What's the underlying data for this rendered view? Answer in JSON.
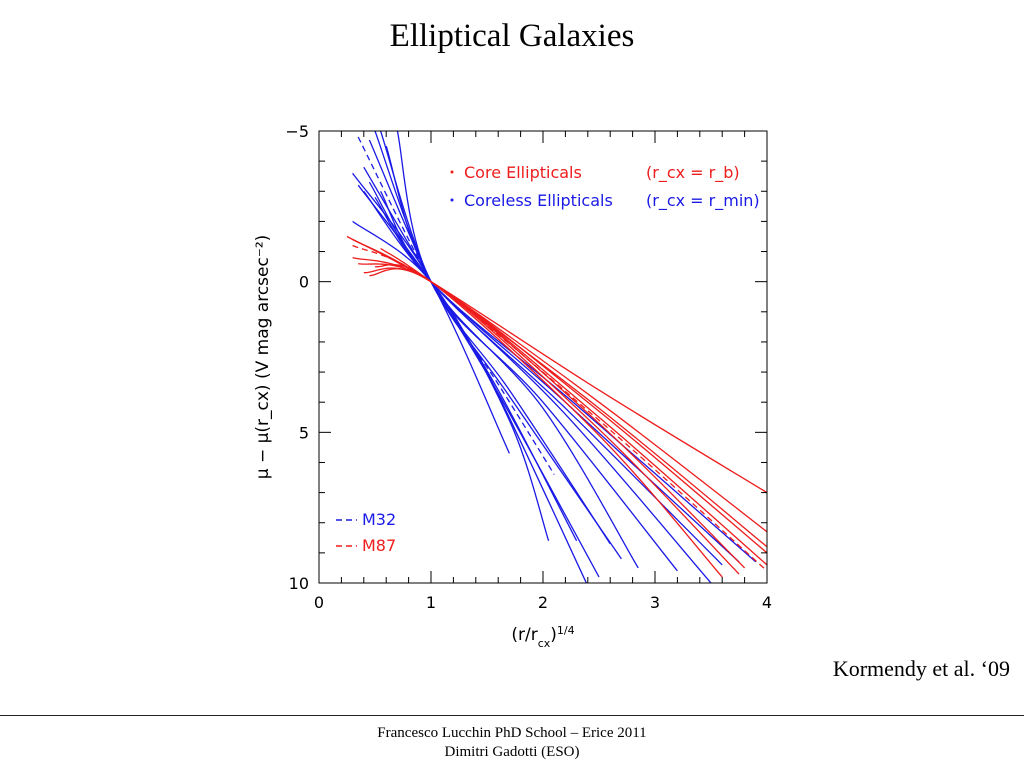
{
  "slide": {
    "title": "Elliptical Galaxies",
    "citation": "Kormendy et al. ‘09",
    "footer_line1": "Francesco Lucchin PhD School – Erice 2011",
    "footer_line2": "Dimitri Gadotti (ESO)"
  },
  "chart_data": {
    "type": "line",
    "title": "",
    "xlabel": "(r/r_cx)^1/4",
    "ylabel": "μ − μ(r_cx)   (V mag arcsec⁻²)",
    "xlim": [
      0,
      4
    ],
    "ylim": [
      10,
      -5
    ],
    "y_inverted": true,
    "x_ticks": [
      0,
      1,
      2,
      3,
      4
    ],
    "y_ticks": [
      -5,
      0,
      5,
      10
    ],
    "colors": {
      "core": "#ee1c1c",
      "coreless": "#1a1ae6"
    },
    "legend": {
      "placement": "top-right",
      "entries": [
        {
          "label": "Core Ellipticals",
          "note": "(r_cx = r_b)",
          "color": "#ee1c1c"
        },
        {
          "label": "Coreless Ellipticals",
          "note": "(r_cx = r_min)",
          "color": "#1a1ae6"
        }
      ]
    },
    "legend_dashed": {
      "placement": "bottom-left",
      "entries": [
        {
          "label": "M32",
          "color": "#1a1ae6"
        },
        {
          "label": "M87",
          "color": "#ee1c1c"
        }
      ]
    },
    "series": [
      {
        "group": "coreless",
        "dashed": false,
        "points": [
          [
            0.3,
            -3.6
          ],
          [
            1,
            0
          ],
          [
            1.7,
            5.7
          ]
        ]
      },
      {
        "group": "coreless",
        "dashed": false,
        "points": [
          [
            0.3,
            -2.0
          ],
          [
            1,
            0
          ],
          [
            1.7,
            4.6
          ],
          [
            2.05,
            8.6
          ]
        ]
      },
      {
        "group": "coreless",
        "dashed": false,
        "points": [
          [
            0.35,
            -3.2
          ],
          [
            1,
            0
          ],
          [
            1.6,
            3.6
          ],
          [
            2.3,
            8.6
          ]
        ]
      },
      {
        "group": "coreless",
        "dashed": false,
        "points": [
          [
            0.4,
            -3.8
          ],
          [
            1,
            0
          ],
          [
            1.6,
            3.7
          ],
          [
            2.5,
            9.8
          ]
        ]
      },
      {
        "group": "coreless",
        "dashed": false,
        "points": [
          [
            0.45,
            -4.7
          ],
          [
            1,
            0
          ],
          [
            1.5,
            3.0
          ],
          [
            2.4,
            10.1
          ]
        ]
      },
      {
        "group": "coreless",
        "dashed": false,
        "points": [
          [
            0.5,
            -5.0
          ],
          [
            1,
            0
          ],
          [
            1.7,
            3.8
          ],
          [
            2.7,
            9.2
          ]
        ]
      },
      {
        "group": "coreless",
        "dashed": false,
        "points": [
          [
            0.55,
            -5.0
          ],
          [
            1,
            0
          ],
          [
            1.7,
            3.6
          ],
          [
            2.6,
            8.7
          ]
        ]
      },
      {
        "group": "coreless",
        "dashed": false,
        "points": [
          [
            0.6,
            -4.5
          ],
          [
            1,
            0
          ],
          [
            2.0,
            4.2
          ],
          [
            2.85,
            9.5
          ]
        ]
      },
      {
        "group": "coreless",
        "dashed": false,
        "points": [
          [
            0.7,
            -5.0
          ],
          [
            1,
            0
          ],
          [
            2.0,
            4.0
          ],
          [
            3.2,
            9.6
          ]
        ]
      },
      {
        "group": "coreless",
        "dashed": false,
        "points": [
          [
            0.4,
            -3.0
          ],
          [
            1,
            0
          ],
          [
            2.2,
            4.4
          ],
          [
            3.5,
            10.0
          ]
        ]
      },
      {
        "group": "coreless",
        "dashed": false,
        "points": [
          [
            0.45,
            -3.3
          ],
          [
            1,
            0
          ],
          [
            2.2,
            4.2
          ],
          [
            3.6,
            9.4
          ]
        ]
      },
      {
        "group": "coreless",
        "dashed": false,
        "points": [
          [
            0.5,
            -2.8
          ],
          [
            1,
            0
          ],
          [
            2.2,
            4.0
          ],
          [
            3.75,
            9.3
          ]
        ]
      },
      {
        "group": "coreless",
        "dashed": false,
        "points": [
          [
            0.55,
            -3.0
          ],
          [
            1,
            0
          ],
          [
            2.3,
            4.1
          ],
          [
            3.9,
            9.3
          ]
        ]
      },
      {
        "group": "coreless",
        "dashed": true,
        "points": [
          [
            0.35,
            -4.8
          ],
          [
            1,
            0
          ],
          [
            1.6,
            3.4
          ],
          [
            2.1,
            6.4
          ]
        ]
      },
      {
        "group": "core",
        "dashed": false,
        "points": [
          [
            0.25,
            -1.5
          ],
          [
            1,
            0
          ],
          [
            2.5,
            3.6
          ],
          [
            4.0,
            7.0
          ]
        ]
      },
      {
        "group": "core",
        "dashed": false,
        "points": [
          [
            0.3,
            -1.4
          ],
          [
            1,
            0
          ],
          [
            2.5,
            4.0
          ],
          [
            4.0,
            8.3
          ]
        ]
      },
      {
        "group": "core",
        "dashed": false,
        "points": [
          [
            0.3,
            -0.8
          ],
          [
            1,
            0
          ],
          [
            2.5,
            4.3
          ],
          [
            4.0,
            9.0
          ]
        ]
      },
      {
        "group": "core",
        "dashed": false,
        "points": [
          [
            0.35,
            -0.6
          ],
          [
            1,
            0
          ],
          [
            2.5,
            4.5
          ],
          [
            4.0,
            9.4
          ]
        ]
      },
      {
        "group": "core",
        "dashed": false,
        "points": [
          [
            0.4,
            -0.3
          ],
          [
            1,
            0
          ],
          [
            2.5,
            4.7
          ],
          [
            3.8,
            9.5
          ]
        ]
      },
      {
        "group": "core",
        "dashed": false,
        "points": [
          [
            0.45,
            -0.2
          ],
          [
            1,
            0
          ],
          [
            2.5,
            4.9
          ],
          [
            3.75,
            9.7
          ]
        ]
      },
      {
        "group": "core",
        "dashed": false,
        "points": [
          [
            0.5,
            -0.5
          ],
          [
            1,
            0
          ],
          [
            2.5,
            5.1
          ],
          [
            3.6,
            9.8
          ]
        ]
      },
      {
        "group": "core",
        "dashed": false,
        "points": [
          [
            0.55,
            -1.1
          ],
          [
            1,
            0
          ],
          [
            2.5,
            4.2
          ],
          [
            4.0,
            8.8
          ]
        ]
      },
      {
        "group": "core",
        "dashed": true,
        "points": [
          [
            0.3,
            -1.2
          ],
          [
            1,
            0
          ],
          [
            2.5,
            4.6
          ],
          [
            4.0,
            9.6
          ]
        ]
      }
    ]
  }
}
